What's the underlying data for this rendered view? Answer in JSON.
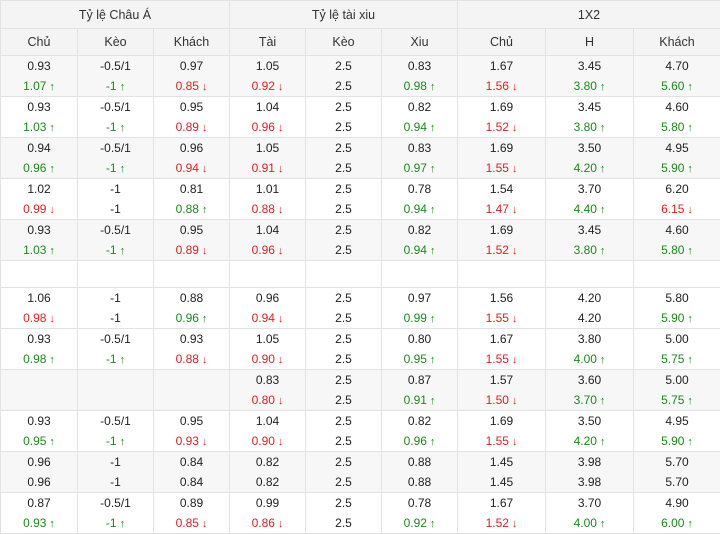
{
  "headers": {
    "groups": [
      "Tỷ lệ Châu Á",
      "Tỷ lệ tài xiu",
      "1X2"
    ],
    "columns": [
      "Chủ",
      "Kèo",
      "Khách",
      "Tài",
      "Kèo",
      "Xiu",
      "Chủ",
      "H",
      "Khách"
    ]
  },
  "arrows": {
    "up": "↑",
    "down": "↓"
  },
  "rows": [
    {
      "alt": true,
      "cells": [
        [
          {
            "v": "0.93"
          },
          {
            "v": "1.07",
            "d": "up"
          }
        ],
        [
          {
            "v": "-0.5/1"
          },
          {
            "v": "-1",
            "d": "up"
          }
        ],
        [
          {
            "v": "0.97"
          },
          {
            "v": "0.85",
            "d": "down"
          }
        ],
        [
          {
            "v": "1.05"
          },
          {
            "v": "0.92",
            "d": "down"
          }
        ],
        [
          {
            "v": "2.5"
          },
          {
            "v": "2.5"
          }
        ],
        [
          {
            "v": "0.83"
          },
          {
            "v": "0.98",
            "d": "up"
          }
        ],
        [
          {
            "v": "1.67"
          },
          {
            "v": "1.56",
            "d": "down"
          }
        ],
        [
          {
            "v": "3.45"
          },
          {
            "v": "3.80",
            "d": "up"
          }
        ],
        [
          {
            "v": "4.70"
          },
          {
            "v": "5.60",
            "d": "up"
          }
        ]
      ]
    },
    {
      "alt": false,
      "cells": [
        [
          {
            "v": "0.93"
          },
          {
            "v": "1.03",
            "d": "up"
          }
        ],
        [
          {
            "v": "-0.5/1"
          },
          {
            "v": "-1",
            "d": "up"
          }
        ],
        [
          {
            "v": "0.95"
          },
          {
            "v": "0.89",
            "d": "down"
          }
        ],
        [
          {
            "v": "1.04"
          },
          {
            "v": "0.96",
            "d": "down"
          }
        ],
        [
          {
            "v": "2.5"
          },
          {
            "v": "2.5"
          }
        ],
        [
          {
            "v": "0.82"
          },
          {
            "v": "0.94",
            "d": "up"
          }
        ],
        [
          {
            "v": "1.69"
          },
          {
            "v": "1.52",
            "d": "down"
          }
        ],
        [
          {
            "v": "3.45"
          },
          {
            "v": "3.80",
            "d": "up"
          }
        ],
        [
          {
            "v": "4.60"
          },
          {
            "v": "5.80",
            "d": "up"
          }
        ]
      ]
    },
    {
      "alt": true,
      "cells": [
        [
          {
            "v": "0.94"
          },
          {
            "v": "0.96",
            "d": "up"
          }
        ],
        [
          {
            "v": "-0.5/1"
          },
          {
            "v": "-1",
            "d": "up"
          }
        ],
        [
          {
            "v": "0.96"
          },
          {
            "v": "0.94",
            "d": "down"
          }
        ],
        [
          {
            "v": "1.05"
          },
          {
            "v": "0.91",
            "d": "down"
          }
        ],
        [
          {
            "v": "2.5"
          },
          {
            "v": "2.5"
          }
        ],
        [
          {
            "v": "0.83"
          },
          {
            "v": "0.97",
            "d": "up"
          }
        ],
        [
          {
            "v": "1.69"
          },
          {
            "v": "1.55",
            "d": "down"
          }
        ],
        [
          {
            "v": "3.50"
          },
          {
            "v": "4.20",
            "d": "up"
          }
        ],
        [
          {
            "v": "4.95"
          },
          {
            "v": "5.90",
            "d": "up"
          }
        ]
      ]
    },
    {
      "alt": false,
      "cells": [
        [
          {
            "v": "1.02"
          },
          {
            "v": "0.99",
            "d": "down"
          }
        ],
        [
          {
            "v": "-1"
          },
          {
            "v": "-1"
          }
        ],
        [
          {
            "v": "0.81"
          },
          {
            "v": "0.88",
            "d": "up"
          }
        ],
        [
          {
            "v": "1.01"
          },
          {
            "v": "0.88",
            "d": "down"
          }
        ],
        [
          {
            "v": "2.5"
          },
          {
            "v": "2.5"
          }
        ],
        [
          {
            "v": "0.78"
          },
          {
            "v": "0.94",
            "d": "up"
          }
        ],
        [
          {
            "v": "1.54"
          },
          {
            "v": "1.47",
            "d": "down"
          }
        ],
        [
          {
            "v": "3.70"
          },
          {
            "v": "4.40",
            "d": "up"
          }
        ],
        [
          {
            "v": "6.20"
          },
          {
            "v": "6.15",
            "d": "down"
          }
        ]
      ]
    },
    {
      "alt": true,
      "cells": [
        [
          {
            "v": "0.93"
          },
          {
            "v": "1.03",
            "d": "up"
          }
        ],
        [
          {
            "v": "-0.5/1"
          },
          {
            "v": "-1",
            "d": "up"
          }
        ],
        [
          {
            "v": "0.95"
          },
          {
            "v": "0.89",
            "d": "down"
          }
        ],
        [
          {
            "v": "1.04"
          },
          {
            "v": "0.96",
            "d": "down"
          }
        ],
        [
          {
            "v": "2.5"
          },
          {
            "v": "2.5"
          }
        ],
        [
          {
            "v": "0.82"
          },
          {
            "v": "0.94",
            "d": "up"
          }
        ],
        [
          {
            "v": "1.69"
          },
          {
            "v": "1.52",
            "d": "down"
          }
        ],
        [
          {
            "v": "3.45"
          },
          {
            "v": "3.80",
            "d": "up"
          }
        ],
        [
          {
            "v": "4.60"
          },
          {
            "v": "5.80",
            "d": "up"
          }
        ]
      ]
    },
    {
      "blank": true
    },
    {
      "alt": false,
      "cells": [
        [
          {
            "v": "1.06"
          },
          {
            "v": "0.98",
            "d": "down"
          }
        ],
        [
          {
            "v": "-1"
          },
          {
            "v": "-1"
          }
        ],
        [
          {
            "v": "0.88"
          },
          {
            "v": "0.96",
            "d": "up"
          }
        ],
        [
          {
            "v": "0.96"
          },
          {
            "v": "0.94",
            "d": "down"
          }
        ],
        [
          {
            "v": "2.5"
          },
          {
            "v": "2.5"
          }
        ],
        [
          {
            "v": "0.97"
          },
          {
            "v": "0.99",
            "d": "up"
          }
        ],
        [
          {
            "v": "1.56"
          },
          {
            "v": "1.55",
            "d": "down"
          }
        ],
        [
          {
            "v": "4.20"
          },
          {
            "v": "4.20"
          }
        ],
        [
          {
            "v": "5.80"
          },
          {
            "v": "5.90",
            "d": "up"
          }
        ]
      ]
    },
    {
      "alt": false,
      "cells": [
        [
          {
            "v": "0.93"
          },
          {
            "v": "0.98",
            "d": "up"
          }
        ],
        [
          {
            "v": "-0.5/1"
          },
          {
            "v": "-1",
            "d": "up"
          }
        ],
        [
          {
            "v": "0.93"
          },
          {
            "v": "0.88",
            "d": "down"
          }
        ],
        [
          {
            "v": "1.05"
          },
          {
            "v": "0.90",
            "d": "down"
          }
        ],
        [
          {
            "v": "2.5"
          },
          {
            "v": "2.5"
          }
        ],
        [
          {
            "v": "0.80"
          },
          {
            "v": "0.95",
            "d": "up"
          }
        ],
        [
          {
            "v": "1.67"
          },
          {
            "v": "1.55",
            "d": "down"
          }
        ],
        [
          {
            "v": "3.80"
          },
          {
            "v": "4.00",
            "d": "up"
          }
        ],
        [
          {
            "v": "5.00"
          },
          {
            "v": "5.75",
            "d": "up"
          }
        ]
      ]
    },
    {
      "alt": true,
      "cells": [
        [
          {
            "v": ""
          },
          {
            "v": ""
          }
        ],
        [
          {
            "v": ""
          },
          {
            "v": ""
          }
        ],
        [
          {
            "v": ""
          },
          {
            "v": ""
          }
        ],
        [
          {
            "v": "0.83"
          },
          {
            "v": "0.80",
            "d": "down"
          }
        ],
        [
          {
            "v": "2.5"
          },
          {
            "v": "2.5"
          }
        ],
        [
          {
            "v": "0.87"
          },
          {
            "v": "0.91",
            "d": "up"
          }
        ],
        [
          {
            "v": "1.57"
          },
          {
            "v": "1.50",
            "d": "down"
          }
        ],
        [
          {
            "v": "3.60"
          },
          {
            "v": "3.70",
            "d": "up"
          }
        ],
        [
          {
            "v": "5.00"
          },
          {
            "v": "5.75",
            "d": "up"
          }
        ]
      ]
    },
    {
      "alt": false,
      "cells": [
        [
          {
            "v": "0.93"
          },
          {
            "v": "0.95",
            "d": "up"
          }
        ],
        [
          {
            "v": "-0.5/1"
          },
          {
            "v": "-1",
            "d": "up"
          }
        ],
        [
          {
            "v": "0.95"
          },
          {
            "v": "0.93",
            "d": "down"
          }
        ],
        [
          {
            "v": "1.04"
          },
          {
            "v": "0.90",
            "d": "down"
          }
        ],
        [
          {
            "v": "2.5"
          },
          {
            "v": "2.5"
          }
        ],
        [
          {
            "v": "0.82"
          },
          {
            "v": "0.96",
            "d": "up"
          }
        ],
        [
          {
            "v": "1.69"
          },
          {
            "v": "1.55",
            "d": "down"
          }
        ],
        [
          {
            "v": "3.50"
          },
          {
            "v": "4.20",
            "d": "up"
          }
        ],
        [
          {
            "v": "4.95"
          },
          {
            "v": "5.90",
            "d": "up"
          }
        ]
      ]
    },
    {
      "alt": true,
      "cells": [
        [
          {
            "v": "0.96"
          },
          {
            "v": "0.96"
          }
        ],
        [
          {
            "v": "-1"
          },
          {
            "v": "-1"
          }
        ],
        [
          {
            "v": "0.84"
          },
          {
            "v": "0.84"
          }
        ],
        [
          {
            "v": "0.82"
          },
          {
            "v": "0.82"
          }
        ],
        [
          {
            "v": "2.5"
          },
          {
            "v": "2.5"
          }
        ],
        [
          {
            "v": "0.88"
          },
          {
            "v": "0.88"
          }
        ],
        [
          {
            "v": "1.45"
          },
          {
            "v": "1.45"
          }
        ],
        [
          {
            "v": "3.98"
          },
          {
            "v": "3.98"
          }
        ],
        [
          {
            "v": "5.70"
          },
          {
            "v": "5.70"
          }
        ]
      ]
    },
    {
      "alt": false,
      "cells": [
        [
          {
            "v": "0.87"
          },
          {
            "v": "0.93",
            "d": "up"
          }
        ],
        [
          {
            "v": "-0.5/1"
          },
          {
            "v": "-1",
            "d": "up"
          }
        ],
        [
          {
            "v": "0.89"
          },
          {
            "v": "0.85",
            "d": "down"
          }
        ],
        [
          {
            "v": "0.99"
          },
          {
            "v": "0.86",
            "d": "down"
          }
        ],
        [
          {
            "v": "2.5"
          },
          {
            "v": "2.5"
          }
        ],
        [
          {
            "v": "0.78"
          },
          {
            "v": "0.92",
            "d": "up"
          }
        ],
        [
          {
            "v": "1.67"
          },
          {
            "v": "1.52",
            "d": "down"
          }
        ],
        [
          {
            "v": "3.70"
          },
          {
            "v": "4.00",
            "d": "up"
          }
        ],
        [
          {
            "v": "4.90"
          },
          {
            "v": "6.00",
            "d": "up"
          }
        ]
      ]
    }
  ]
}
